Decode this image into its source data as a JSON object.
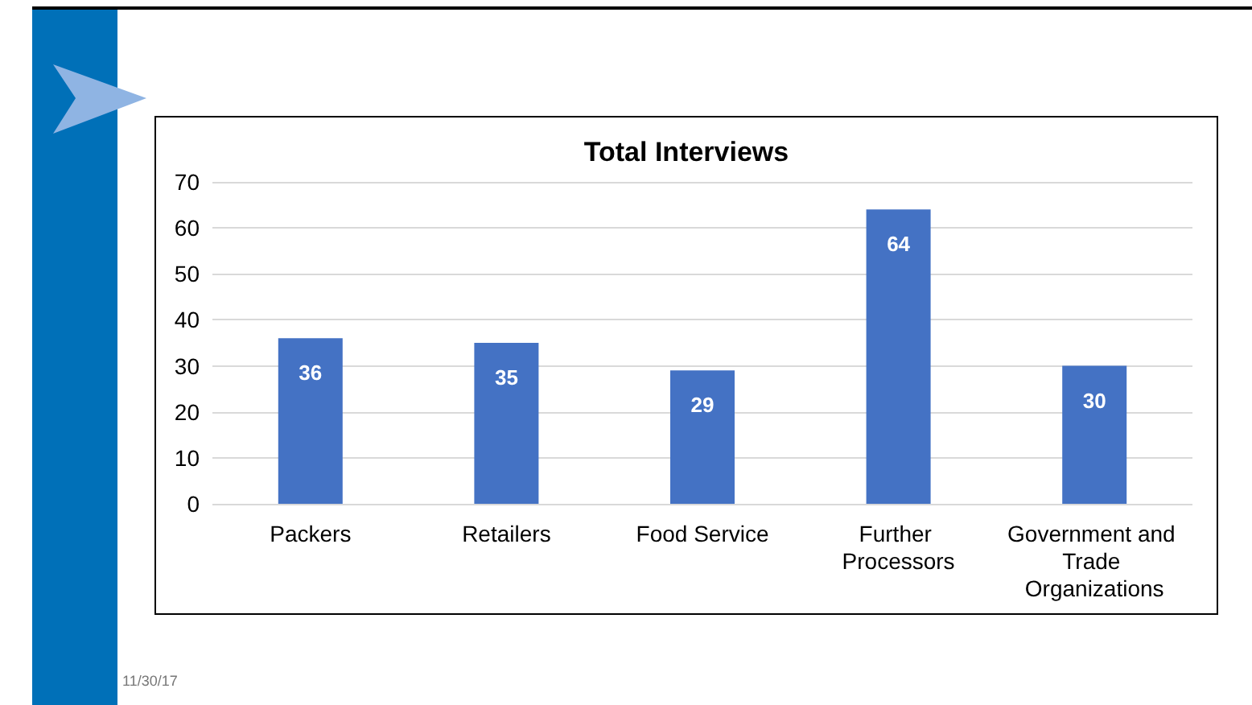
{
  "chart_data": {
    "type": "bar",
    "title": "Total Interviews",
    "categories": [
      "Packers",
      "Retailers",
      "Food Service",
      "Further Processors",
      "Government and Trade Organizations"
    ],
    "values": [
      36,
      35,
      29,
      64,
      30
    ],
    "color": "#4472c4",
    "ylim": [
      0,
      70
    ],
    "yticks": [
      0,
      10,
      20,
      30,
      40,
      50,
      60,
      70
    ],
    "grid": "y",
    "data_labels": true,
    "annotations": [
      "11/30/17"
    ]
  }
}
